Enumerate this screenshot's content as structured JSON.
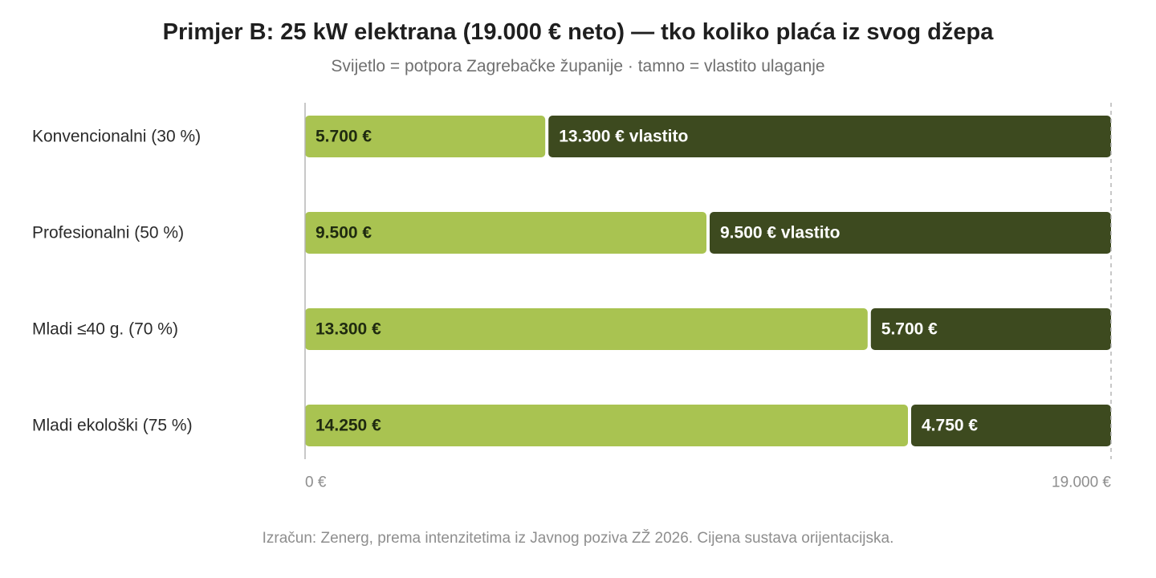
{
  "title": "Primjer B: 25 kW elektrana (19.000 € neto) — tko koliko plaća iz svog džepa",
  "subtitle": "Svijetlo = potpora Zagrebačke županije · tamno = vlastito ulaganje",
  "footer": "Izračun: Zenerg, prema intenzitetima iz Javnog poziva ZŽ 2026. Cijena sustava orijentacijska.",
  "colors": {
    "support": "#a9c351",
    "own": "#3d4a1f",
    "support_text": "#1f2a10",
    "own_text": "#ffffff",
    "axis": "#b5b5b5",
    "tick_text": "#8e8e8e",
    "category_text": "#2b2b2b"
  },
  "chart_data": {
    "type": "bar",
    "orientation": "horizontal",
    "stacked": true,
    "title": "Primjer B: 25 kW elektrana (19.000 € neto) — tko koliko plaća iz svog džepa",
    "subtitle": "Svijetlo = potpora Zagrebačke županije · tamno = vlastito ulaganje",
    "categories": [
      "Konvencionalni (30 %)",
      "Profesionalni (50 %)",
      "Mladi ≤40 g. (70 %)",
      "Mladi ekološki (75 %)"
    ],
    "series": [
      {
        "key": "support",
        "values": [
          5700,
          9500,
          13300,
          14250
        ]
      },
      {
        "key": "own",
        "values": [
          13300,
          9500,
          5700,
          4750
        ]
      }
    ],
    "data_labels": {
      "support": [
        "5.700 €",
        "9.500 €",
        "13.300 €",
        "14.250 €"
      ],
      "own": [
        "13.300 € vlastito",
        "9.500 € vlastito",
        "5.700 €",
        "4.750 €"
      ]
    },
    "xlim": [
      0,
      19000
    ],
    "x_ticks": [
      {
        "value": 0,
        "label": "0 €"
      },
      {
        "value": 19000,
        "label": "19.000 €"
      }
    ],
    "reference_line": {
      "value": 19000,
      "style": "dashed"
    },
    "legend": "none",
    "grid": false
  }
}
